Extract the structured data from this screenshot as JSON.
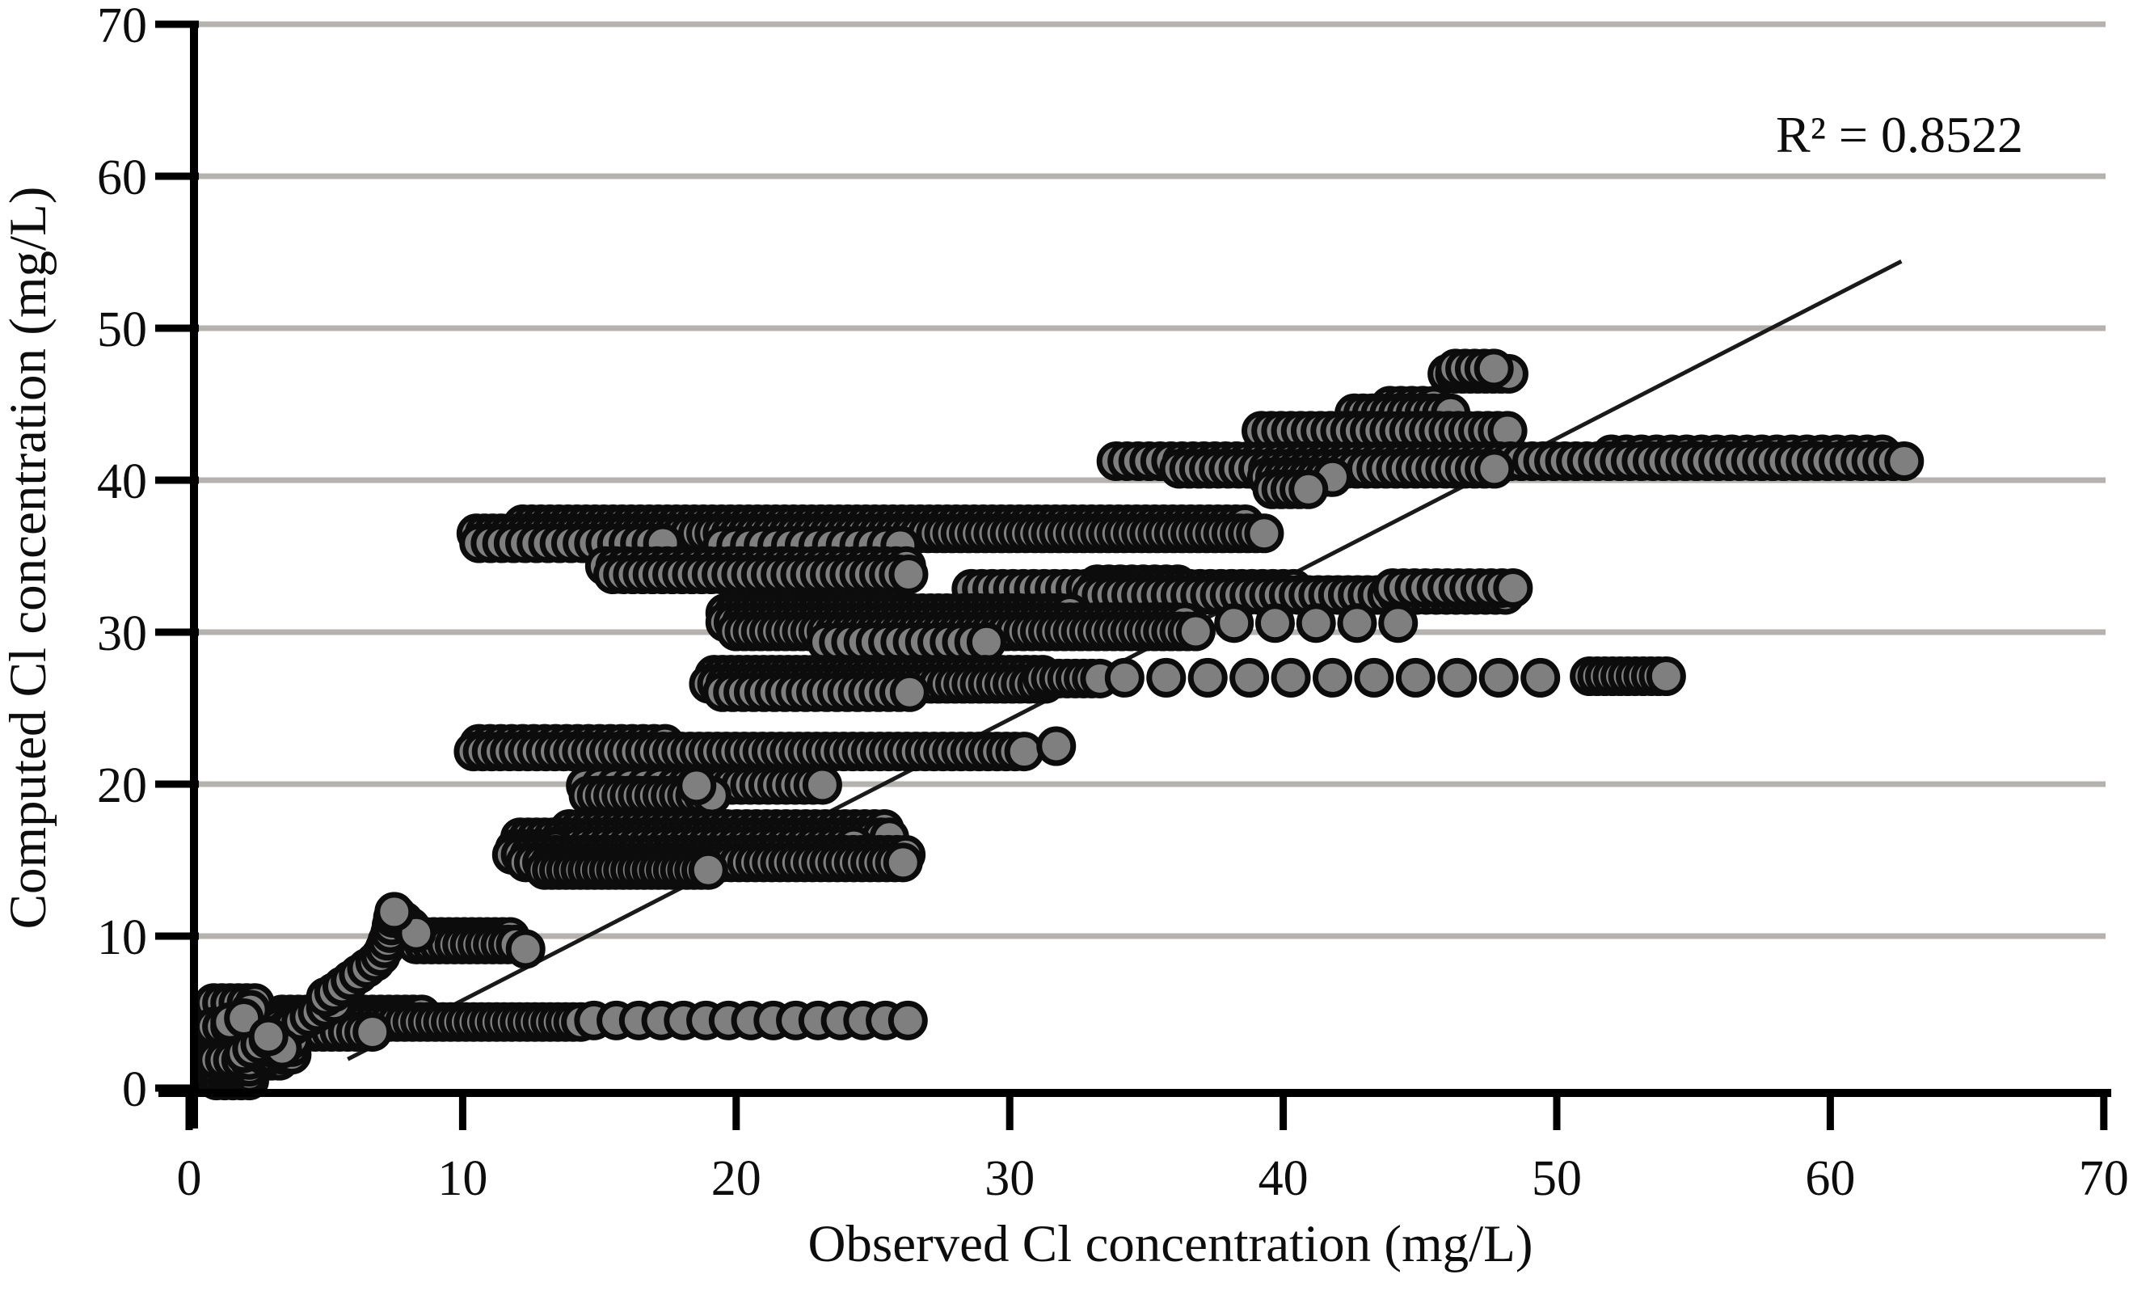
{
  "figure": {
    "r2_annotation": "R² = 0.8522"
  },
  "chart_data": {
    "type": "scatter",
    "title": "",
    "xlabel": "Observed Cl concentration (mg/L)",
    "ylabel": "Computed Cl concentration (mg/L)",
    "xlim": [
      0,
      70
    ],
    "ylim": [
      0,
      70
    ],
    "xticks": [
      0,
      10,
      20,
      30,
      40,
      50,
      60,
      70
    ],
    "yticks": [
      0,
      10,
      20,
      30,
      40,
      50,
      60,
      70
    ],
    "grid": {
      "horizontal": true,
      "vertical": false,
      "color": "#b5b1ac",
      "width": 7
    },
    "legend": "none",
    "r2": 0.8522,
    "r2_text": "R² = 0.8522",
    "trendline": {
      "x1": 5.8,
      "y1": 1.9,
      "x2": 62.6,
      "y2": 54.4,
      "color": "#1a1a1a",
      "width": 5
    },
    "marker": {
      "shape": "circle",
      "fill": "#7f7f7f",
      "stroke": "#0c0c0c",
      "radius": 21,
      "stroke_width": 7
    },
    "axis_color": "#000000",
    "point_bands": [
      {
        "y": 47.0,
        "x1": 46.0,
        "x2": 48.3,
        "step": 0.28
      },
      {
        "y": 47.35,
        "x1": 46.3,
        "x2": 47.7,
        "step": 0.35
      },
      {
        "y": 44.9,
        "x1": 43.9,
        "x2": 45.6,
        "step": 0.4
      },
      {
        "y": 44.4,
        "x1": 42.6,
        "x2": 46.4,
        "step": 0.32
      },
      {
        "y": 43.25,
        "x1": 39.2,
        "x2": 48.2,
        "step": 0.36
      },
      {
        "y": 41.7,
        "x1": 52.0,
        "x2": 62.4,
        "step": 0.55
      },
      {
        "y": 41.25,
        "x1": 33.9,
        "x2": 62.9,
        "step": 0.4
      },
      {
        "y": 40.75,
        "x1": 36.2,
        "x2": 48.0,
        "step": 0.36
      },
      {
        "y": 40.2,
        "x1": 39.4,
        "x2": 41.8,
        "step": 0.3
      },
      {
        "y": 39.4,
        "x1": 39.6,
        "x2": 41.0,
        "step": 0.33
      },
      {
        "y": 37.1,
        "x1": 12.2,
        "x2": 38.8,
        "step": 0.33
      },
      {
        "y": 36.5,
        "x1": 10.5,
        "x2": 39.4,
        "step": 0.3
      },
      {
        "y": 35.85,
        "x1": 10.6,
        "x2": 17.6,
        "step": 0.42
      },
      {
        "y": 35.7,
        "x1": 19.5,
        "x2": 26.0,
        "step": 0.5
      },
      {
        "y": 34.35,
        "x1": 15.2,
        "x2": 26.4,
        "step": 0.38
      },
      {
        "y": 33.8,
        "x1": 15.5,
        "x2": 26.4,
        "step": 0.36
      },
      {
        "y": 33.15,
        "x1": 33.2,
        "x2": 36.2,
        "step": 0.42
      },
      {
        "y": 32.85,
        "x1": 28.6,
        "x2": 40.5,
        "step": 0.38
      },
      {
        "y": 32.45,
        "x1": 33.0,
        "x2": 48.4,
        "step": 0.36
      },
      {
        "y": 32.9,
        "x1": 44.0,
        "x2": 48.4,
        "step": 0.4
      },
      {
        "y": 31.25,
        "x1": 19.6,
        "x2": 32.2,
        "step": 0.3
      },
      {
        "y": 30.65,
        "x1": 19.6,
        "x2": 36.6,
        "step": 0.3
      },
      {
        "y": 30.05,
        "x1": 20.0,
        "x2": 36.8,
        "step": 0.3
      },
      {
        "y": 30.6,
        "x1": 38.2,
        "x2": 44.2,
        "step": 1.5
      },
      {
        "y": 29.35,
        "x1": 23.3,
        "x2": 29.5,
        "step": 0.45
      },
      {
        "y": 27.2,
        "x1": 19.2,
        "x2": 31.2,
        "step": 0.3
      },
      {
        "y": 26.6,
        "x1": 19.0,
        "x2": 31.3,
        "step": 0.3
      },
      {
        "y": 26.05,
        "x1": 19.5,
        "x2": 26.5,
        "step": 0.38
      },
      {
        "y": 26.95,
        "x1": 31.2,
        "x2": 33.4,
        "step": 0.3
      },
      {
        "y": 27.0,
        "x1": 34.2,
        "x2": 50.9,
        "step": 1.52
      },
      {
        "y": 27.1,
        "x1": 51.2,
        "x2": 54.2,
        "step": 0.28
      },
      {
        "y": 22.65,
        "x1": 10.6,
        "x2": 17.6,
        "step": 0.4
      },
      {
        "y": 22.15,
        "x1": 10.4,
        "x2": 30.6,
        "step": 0.33
      },
      {
        "y": 19.9,
        "x1": 14.5,
        "x2": 18.2,
        "step": 0.55
      },
      {
        "y": 19.95,
        "x1": 18.2,
        "x2": 23.3,
        "step": 0.33
      },
      {
        "y": 19.25,
        "x1": 14.6,
        "x2": 19.2,
        "step": 0.3
      },
      {
        "y": 17.05,
        "x1": 13.9,
        "x2": 25.7,
        "step": 0.36
      },
      {
        "y": 16.5,
        "x1": 12.1,
        "x2": 25.8,
        "step": 0.3
      },
      {
        "y": 15.95,
        "x1": 13.5,
        "x2": 24.5,
        "step": 0.36
      },
      {
        "y": 15.75,
        "x1": 11.9,
        "x2": 13.5,
        "step": 0.3
      },
      {
        "y": 15.35,
        "x1": 11.8,
        "x2": 26.2,
        "step": 0.32
      },
      {
        "y": 14.85,
        "x1": 12.3,
        "x2": 26.2,
        "step": 0.3
      },
      {
        "y": 14.35,
        "x1": 13.0,
        "x2": 19.0,
        "step": 0.26
      },
      {
        "y": 9.95,
        "x1": 8.1,
        "x2": 11.9,
        "step": 0.28
      },
      {
        "y": 9.45,
        "x1": 8.3,
        "x2": 12.15,
        "step": 0.28
      },
      {
        "y": 4.85,
        "x1": 3.4,
        "x2": 8.6,
        "step": 0.3
      },
      {
        "y": 4.35,
        "x1": 3.4,
        "x2": 14.4,
        "step": 0.28
      },
      {
        "y": 3.7,
        "x1": 2.2,
        "x2": 6.8,
        "step": 0.3
      },
      {
        "y": 4.45,
        "x1": 14.8,
        "x2": 26.3,
        "step": 0.82
      }
    ],
    "point_clusters": [
      {
        "x1": 0.9,
        "x2": 2.6,
        "dx": 0.3,
        "y1": 3.8,
        "y2": 5.7,
        "dy": 0.45
      },
      {
        "x1": 0.9,
        "x2": 3.5,
        "dx": 0.3,
        "y1": 1.8,
        "y2": 4.2,
        "dy": 0.45
      },
      {
        "x1": 1.0,
        "x2": 2.3,
        "dx": 0.3,
        "y1": 0.5,
        "y2": 2.0,
        "dy": 0.45
      },
      {
        "x1": 2.7,
        "x2": 3.8,
        "dx": 0.35,
        "y1": 2.2,
        "y2": 3.2,
        "dy": 0.5
      }
    ],
    "point_arcs": [
      [
        [
          2.0,
          2.3
        ],
        [
          2.3,
          2.6
        ],
        [
          2.6,
          2.9
        ],
        [
          2.9,
          3.2
        ],
        [
          3.2,
          3.5
        ],
        [
          3.5,
          3.8
        ],
        [
          3.8,
          4.1
        ],
        [
          4.1,
          4.4
        ],
        [
          4.4,
          4.7
        ],
        [
          4.7,
          5.0
        ],
        [
          5.0,
          5.3
        ],
        [
          5.3,
          5.6
        ]
      ],
      [
        [
          5.0,
          6.0
        ],
        [
          5.3,
          6.3
        ],
        [
          5.6,
          6.7
        ],
        [
          5.9,
          7.1
        ],
        [
          6.2,
          7.5
        ],
        [
          6.5,
          7.9
        ],
        [
          6.8,
          8.3
        ],
        [
          7.0,
          8.7
        ],
        [
          7.15,
          9.2
        ],
        [
          7.25,
          9.7
        ],
        [
          7.35,
          10.2
        ],
        [
          7.4,
          10.7
        ],
        [
          7.45,
          11.2
        ]
      ],
      [
        [
          7.6,
          11.4
        ],
        [
          7.85,
          11.0
        ],
        [
          8.1,
          10.6
        ],
        [
          8.3,
          10.2
        ]
      ]
    ],
    "single_points": [
      [
        31.7,
        22.5
      ],
      [
        12.3,
        9.15
      ],
      [
        18.55,
        19.9
      ],
      [
        7.5,
        11.6
      ]
    ],
    "highlight_points": [
      [
        2.25,
        5.15
      ],
      [
        1.5,
        4.35
      ],
      [
        3.4,
        2.6
      ],
      [
        2.0,
        4.6
      ],
      [
        2.9,
        3.4
      ]
    ]
  }
}
